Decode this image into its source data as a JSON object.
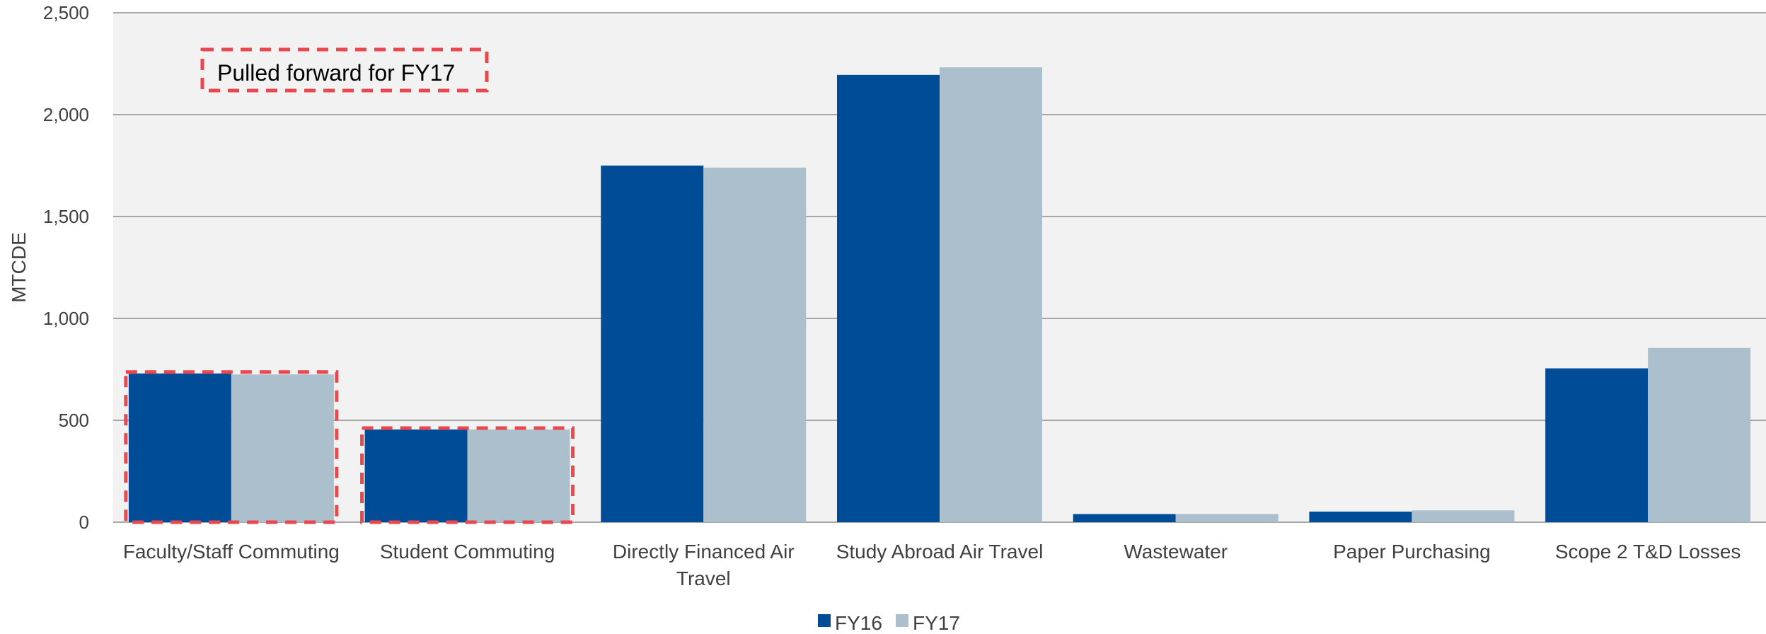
{
  "chart_data": {
    "type": "bar",
    "title": "",
    "xlabel": "",
    "ylabel": "MTCDE",
    "ylim": [
      0,
      2500
    ],
    "yticks": [
      0,
      500,
      1000,
      1500,
      2000,
      2500
    ],
    "ytick_labels": [
      "0",
      "500",
      "1,000",
      "1,500",
      "2,000",
      "2,500"
    ],
    "categories": [
      [
        "Faculty/Staff Commuting"
      ],
      [
        "Student Commuting"
      ],
      [
        "Directly Financed Air",
        "Travel"
      ],
      [
        "Study Abroad Air Travel"
      ],
      [
        "Wastewater"
      ],
      [
        "Paper Purchasing"
      ],
      [
        "Scope 2 T&D Losses"
      ]
    ],
    "series": [
      {
        "name": "FY16",
        "color": "#004C97",
        "values": [
          730,
          455,
          1750,
          2195,
          40,
          52,
          755
        ]
      },
      {
        "name": "FY17",
        "color": "#ABBFCD",
        "values": [
          725,
          455,
          1740,
          2232,
          40,
          58,
          855
        ]
      }
    ],
    "grid": true,
    "legend_position": "bottom",
    "annotation": {
      "text": "Pulled forward for FY17",
      "color": "#E8484E",
      "highlighted_categories": [
        0,
        1
      ]
    },
    "plot_background": "#F2F2F2",
    "gridline_color": "#8C8C8C"
  }
}
